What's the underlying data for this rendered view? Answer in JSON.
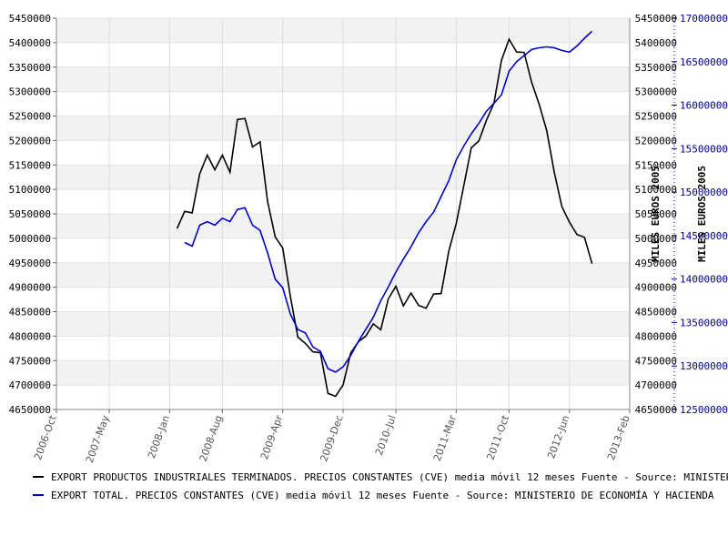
{
  "chart_data": {
    "type": "line",
    "title": "",
    "x_ticks": [
      "2006-Oct",
      "2007-May",
      "2008-Jan",
      "2008-Aug",
      "2009-Apr",
      "2009-Dec",
      "2010-Jul",
      "2011-Mar",
      "2011-Oct",
      "2012-Jun",
      "2013-Feb"
    ],
    "y_axis": {
      "title": "MILES EUROS 2005",
      "range": [
        4650000,
        5450000
      ],
      "ticks": [
        "4650000",
        "4700000",
        "4750000",
        "4800000",
        "4850000",
        "4900000",
        "4950000",
        "5000000",
        "5050000",
        "5100000",
        "5150000",
        "5200000",
        "5250000",
        "5300000",
        "5350000",
        "5400000",
        "5450000"
      ]
    },
    "y2_axis": {
      "title": "MILES EUROS 2005",
      "range": [
        12500000,
        17000000
      ],
      "ticks": [
        "12500000",
        "13000000",
        "13500000",
        "14000000",
        "14500000",
        "15000000",
        "15500000",
        "16000000",
        "16500000",
        "17000000"
      ]
    },
    "grid": "horizontal alternating bands",
    "series": [
      {
        "name": "EXPORT PRODUCTOS INDUSTRIALES TERMINADOS. PRECIOS CONSTANTES (CVE) media móvil 12 meses  Fuente - Source: MINISTERIO DE ECONOMÍA Y HACIENDA",
        "axis": "left",
        "color": "#000000",
        "x": [
          "2008-Feb",
          "2008-Mar",
          "2008-Apr",
          "2008-May",
          "2008-Jun",
          "2008-Jul",
          "2008-Aug",
          "2008-Sep",
          "2008-Oct",
          "2008-Nov",
          "2008-Dec",
          "2009-Jan",
          "2009-Feb",
          "2009-Mar",
          "2009-Apr",
          "2009-May",
          "2009-Jun",
          "2009-Jul",
          "2009-Aug",
          "2009-Sep",
          "2009-Oct",
          "2009-Nov",
          "2009-Dec",
          "2010-Jan",
          "2010-Feb",
          "2010-Mar",
          "2010-Apr",
          "2010-May",
          "2010-Jun",
          "2010-Jul",
          "2010-Aug",
          "2010-Sep",
          "2010-Oct",
          "2010-Nov",
          "2010-Dec",
          "2011-Jan",
          "2011-Feb",
          "2011-Mar",
          "2011-Apr",
          "2011-May",
          "2011-Jun",
          "2011-Jul",
          "2011-Aug",
          "2011-Sep",
          "2011-Oct",
          "2011-Nov",
          "2011-Dec",
          "2012-Jan",
          "2012-Feb",
          "2012-Mar",
          "2012-Apr",
          "2012-May",
          "2012-Jun",
          "2012-Jul",
          "2012-Aug",
          "2012-Sep"
        ],
        "values": [
          5020000,
          5055000,
          5052000,
          5132000,
          5170000,
          5140000,
          5170000,
          5135000,
          5243000,
          5245000,
          5187000,
          5197000,
          5075000,
          5003000,
          4980000,
          4882000,
          4798000,
          4785000,
          4768000,
          4766000,
          4683000,
          4677000,
          4700000,
          4765000,
          4788000,
          4800000,
          4825000,
          4813000,
          4876000,
          4902000,
          4862000,
          4888000,
          4863000,
          4857000,
          4886000,
          4887000,
          4973000,
          5030000,
          5107000,
          5185000,
          5199000,
          5241000,
          5276000,
          5364000,
          5407000,
          5381000,
          5380000,
          5319000,
          5274000,
          5220000,
          5135000,
          5065000,
          5033000,
          5008000,
          5002000,
          4948000
        ]
      },
      {
        "name": "EXPORT TOTAL. PRECIOS CONSTANTES (CVE) media móvil 12 meses  Fuente - Source: MINISTERIO DE ECONOMÍA Y HACIENDA",
        "axis": "right",
        "color": "#0000cd",
        "x": [
          "2008-Mar",
          "2008-Apr",
          "2008-May",
          "2008-Jun",
          "2008-Jul",
          "2008-Aug",
          "2008-Sep",
          "2008-Oct",
          "2008-Nov",
          "2008-Dec",
          "2009-Jan",
          "2009-Feb",
          "2009-Mar",
          "2009-Apr",
          "2009-May",
          "2009-Jun",
          "2009-Jul",
          "2009-Aug",
          "2009-Sep",
          "2009-Oct",
          "2009-Nov",
          "2009-Dec",
          "2010-Jan",
          "2010-Feb",
          "2010-Mar",
          "2010-Apr",
          "2010-May",
          "2010-Jun",
          "2010-Jul",
          "2010-Aug",
          "2010-Sep",
          "2010-Oct",
          "2010-Nov",
          "2010-Dec",
          "2011-Jan",
          "2011-Feb",
          "2011-Mar",
          "2011-Apr",
          "2011-May",
          "2011-Jun",
          "2011-Jul",
          "2011-Aug",
          "2011-Sep",
          "2011-Oct",
          "2011-Nov",
          "2011-Dec",
          "2012-Jan",
          "2012-Feb",
          "2012-Mar",
          "2012-Apr",
          "2012-May",
          "2012-Jun",
          "2012-Jul",
          "2012-Aug",
          "2012-Sep"
        ],
        "values": [
          14420000,
          14380000,
          14620000,
          14660000,
          14620000,
          14700000,
          14660000,
          14800000,
          14820000,
          14620000,
          14560000,
          14300000,
          14000000,
          13900000,
          13600000,
          13420000,
          13380000,
          13220000,
          13170000,
          12970000,
          12930000,
          12990000,
          13120000,
          13280000,
          13420000,
          13560000,
          13750000,
          13910000,
          14080000,
          14230000,
          14370000,
          14530000,
          14660000,
          14770000,
          14950000,
          15130000,
          15370000,
          15530000,
          15670000,
          15790000,
          15930000,
          16020000,
          16120000,
          16390000,
          16500000,
          16570000,
          16640000,
          16660000,
          16670000,
          16660000,
          16630000,
          16610000,
          16680000,
          16770000,
          16850000
        ]
      }
    ]
  }
}
